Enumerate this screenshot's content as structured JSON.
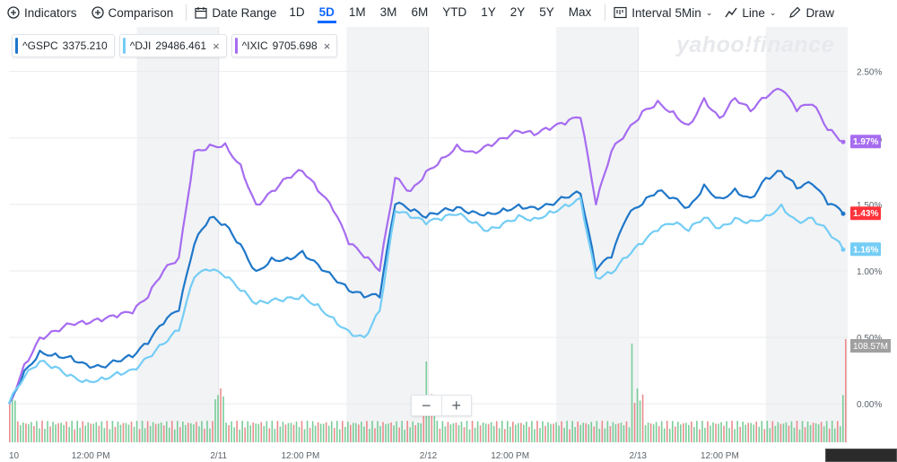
{
  "toolbar": {
    "indicators": "Indicators",
    "comparison": "Comparison",
    "date_range": "Date Range",
    "ranges": [
      "1D",
      "5D",
      "1M",
      "3M",
      "6M",
      "YTD",
      "1Y",
      "2Y",
      "5Y",
      "Max"
    ],
    "active_range": "5D",
    "interval": "Interval",
    "interval_value": "5Min",
    "chart_type": "Line",
    "draw": "Draw"
  },
  "legend": [
    {
      "symbol": "^GSPC",
      "value": "3375.210",
      "color": "#1f77c9",
      "closable": false
    },
    {
      "symbol": "^DJI",
      "value": "29486.461",
      "color": "#74cdf5",
      "closable": true
    },
    {
      "symbol": "^IXIC",
      "value": "9705.698",
      "color": "#a66cf0",
      "closable": true
    }
  ],
  "watermark": "yahoo!finance",
  "zoom": {
    "minus": "−",
    "plus": "+"
  },
  "chart_data": {
    "type": "line",
    "x_ticks": [
      "10",
      "12:00 PM",
      "2/11",
      "12:00 PM",
      "2/12",
      "12:00 PM",
      "2/13",
      "12:00 PM"
    ],
    "y_ticks": [
      "2.50%",
      "2.00%",
      "1.50%",
      "1.00%",
      "0.50%",
      "0.00%"
    ],
    "ylim": [
      -0.1,
      2.7
    ],
    "days": 4,
    "series": [
      {
        "name": "^IXIC",
        "color": "#a66cf0",
        "end_label": "1.97%",
        "values": [
          0.0,
          0.3,
          0.5,
          0.55,
          0.6,
          0.6,
          0.62,
          0.65,
          0.68,
          0.8,
          1.0,
          1.1,
          1.9,
          1.95,
          1.96,
          1.8,
          1.5,
          1.6,
          1.7,
          1.75,
          1.6,
          1.45,
          1.2,
          1.1,
          1.0,
          1.7,
          1.6,
          1.75,
          1.85,
          1.95,
          1.9,
          1.95,
          2.0,
          2.05,
          2.02,
          2.06,
          2.1,
          2.15,
          1.5,
          1.9,
          2.05,
          2.2,
          2.28,
          2.2,
          2.1,
          2.3,
          2.15,
          2.3,
          2.2,
          2.3,
          2.36,
          2.2,
          2.25,
          2.06,
          1.97
        ]
      },
      {
        "name": "^GSPC",
        "color": "#1f77c9",
        "end_label": "1.43%",
        "values": [
          0.0,
          0.25,
          0.4,
          0.38,
          0.36,
          0.3,
          0.28,
          0.32,
          0.35,
          0.45,
          0.6,
          0.7,
          1.2,
          1.4,
          1.35,
          1.2,
          1.0,
          1.1,
          1.1,
          1.15,
          1.05,
          0.95,
          0.85,
          0.8,
          0.8,
          1.5,
          1.45,
          1.4,
          1.45,
          1.48,
          1.45,
          1.44,
          1.47,
          1.5,
          1.48,
          1.5,
          1.55,
          1.58,
          1.0,
          1.1,
          1.4,
          1.5,
          1.6,
          1.55,
          1.48,
          1.65,
          1.55,
          1.62,
          1.55,
          1.7,
          1.75,
          1.62,
          1.65,
          1.5,
          1.43
        ]
      },
      {
        "name": "^DJI",
        "color": "#74cdf5",
        "end_label": "1.16%",
        "values": [
          0.0,
          0.2,
          0.32,
          0.28,
          0.22,
          0.18,
          0.2,
          0.24,
          0.26,
          0.35,
          0.45,
          0.55,
          0.95,
          1.0,
          0.95,
          0.85,
          0.75,
          0.78,
          0.8,
          0.82,
          0.75,
          0.65,
          0.55,
          0.5,
          0.7,
          1.45,
          1.4,
          1.35,
          1.38,
          1.42,
          1.36,
          1.3,
          1.36,
          1.42,
          1.4,
          1.45,
          1.5,
          1.55,
          0.95,
          0.98,
          1.1,
          1.2,
          1.3,
          1.35,
          1.3,
          1.4,
          1.32,
          1.4,
          1.38,
          1.42,
          1.5,
          1.38,
          1.4,
          1.3,
          1.16
        ]
      }
    ],
    "volume_label": "108.57M",
    "volume_label_color": "#a0a0a0"
  }
}
